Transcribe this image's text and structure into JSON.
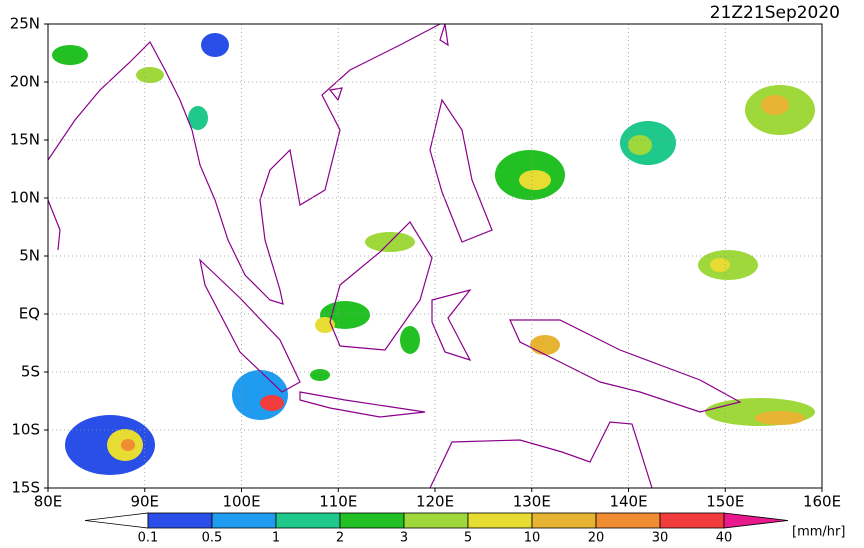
{
  "map": {
    "timestamp": "21Z21Sep2020",
    "lat_labels": [
      "25N",
      "20N",
      "15N",
      "10N",
      "5N",
      "EQ",
      "5S",
      "10S",
      "15S"
    ],
    "lon_labels": [
      "80E",
      "90E",
      "100E",
      "110E",
      "120E",
      "130E",
      "140E",
      "150E",
      "160E"
    ],
    "colorbar": {
      "labels": [
        "0.1",
        "0.5",
        "1",
        "2",
        "3",
        "5",
        "10",
        "20",
        "30",
        "40"
      ],
      "colors": [
        "#2a4fe8",
        "#1f9cf0",
        "#1fc98c",
        "#22c022",
        "#9fd83a",
        "#e6dc32",
        "#e6b432",
        "#f08c32",
        "#f03c3c"
      ],
      "below_color": "#ffffff",
      "above_color": "#e8198c",
      "unit": "[mm/hr]"
    }
  }
}
